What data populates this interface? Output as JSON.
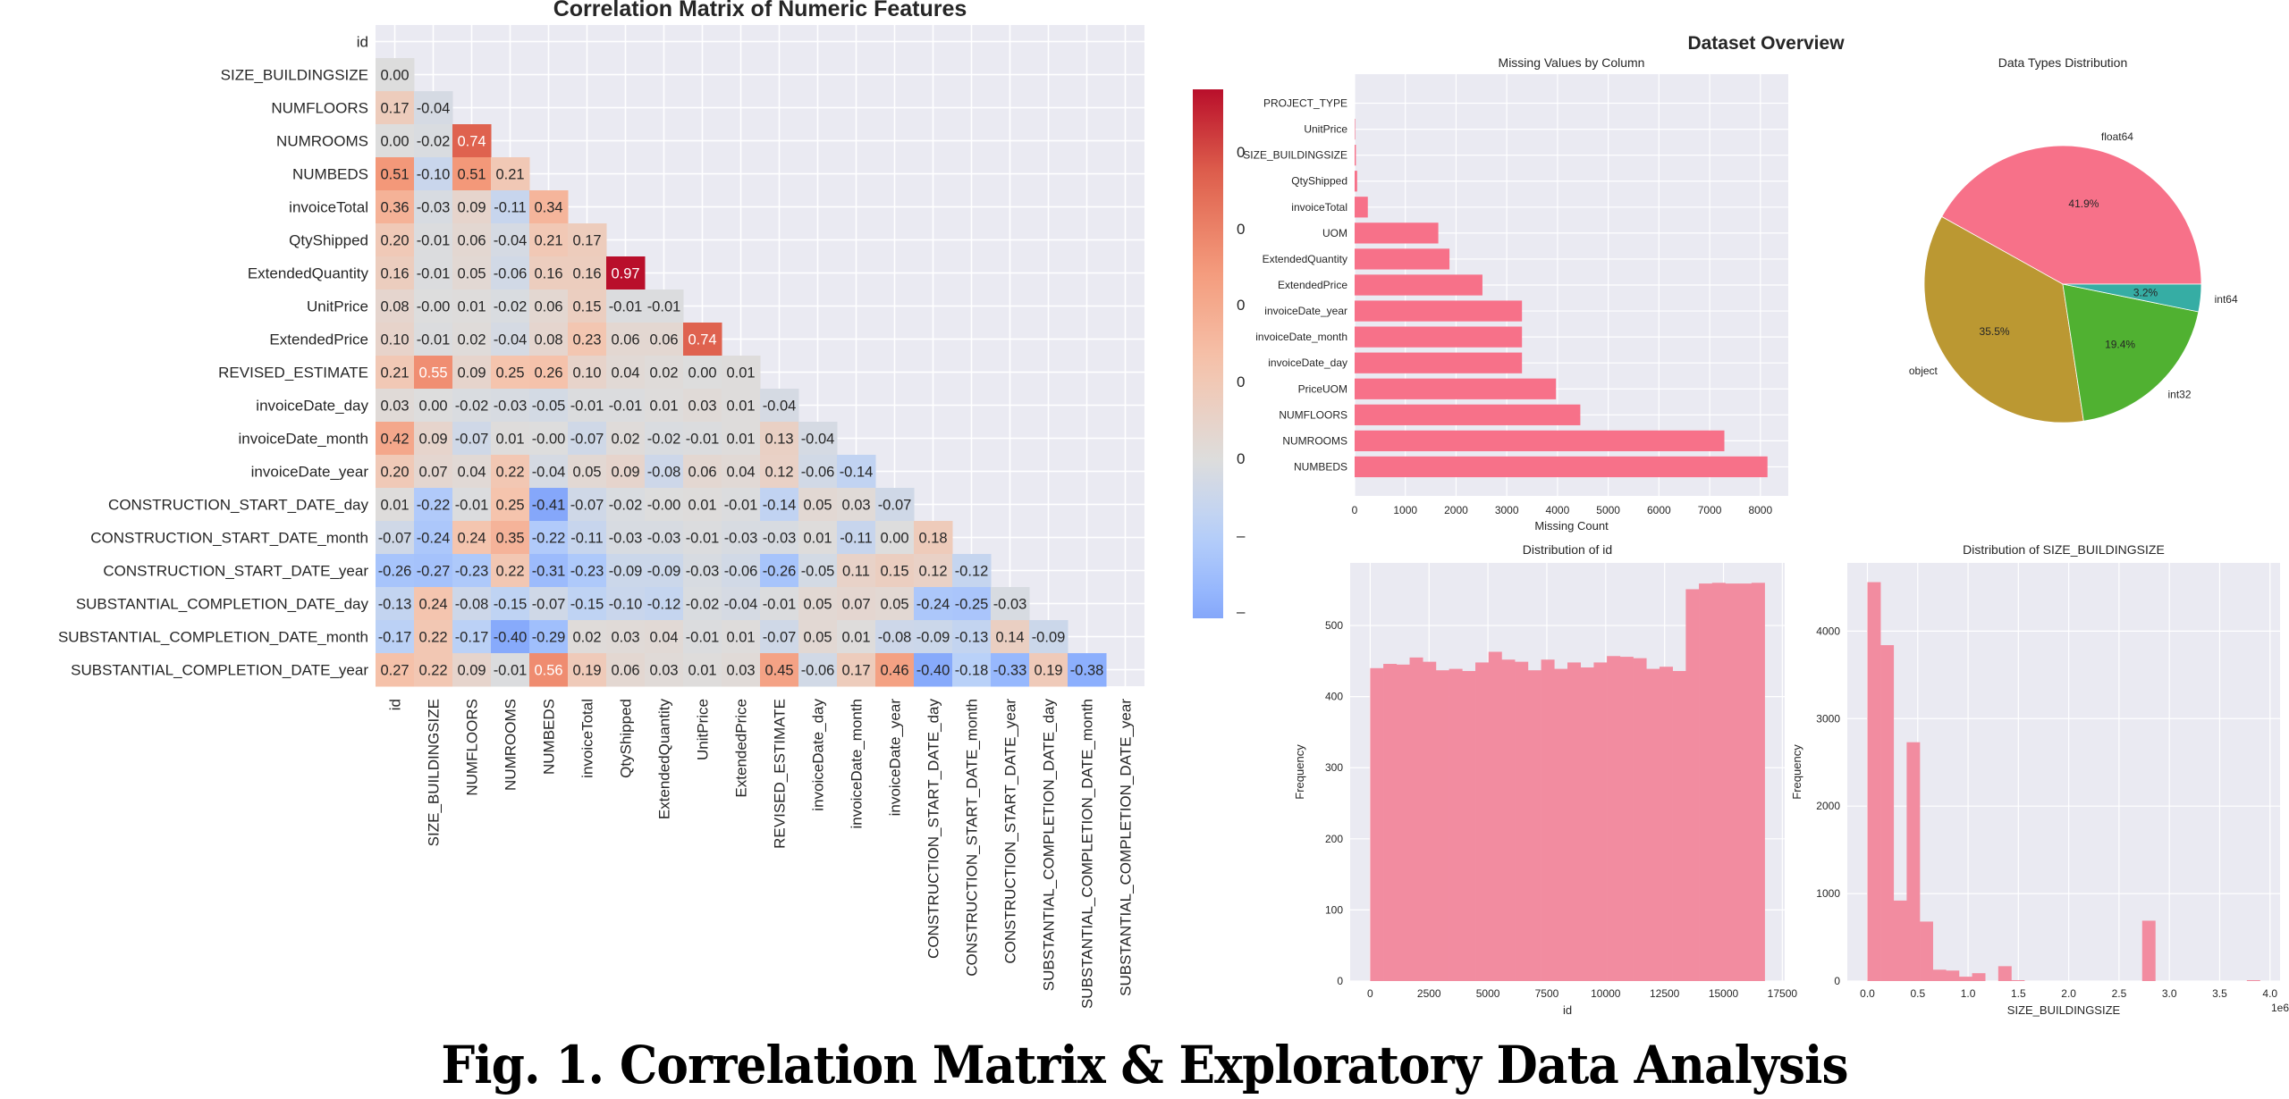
{
  "figure": {
    "caption": "Fig. 1.  Correlation Matrix & Exploratory Data Analysis",
    "overview_title": "Dataset Overview"
  },
  "chart_data": [
    {
      "type": "heatmap",
      "title": "Correlation Matrix of Numeric Features",
      "mask": "upper-triangle-including-diagonal",
      "colormap": "coolwarm",
      "vmin": -1,
      "vmax": 1,
      "colorbar_tick_labels": [
        "0",
        "0",
        "0",
        "0",
        "0",
        "–",
        "–"
      ],
      "labels": [
        "id",
        "SIZE_BUILDINGSIZE",
        "NUMFLOORS",
        "NUMROOMS",
        "NUMBEDS",
        "invoiceTotal",
        "QtyShipped",
        "ExtendedQuantity",
        "UnitPrice",
        "ExtendedPrice",
        "REVISED_ESTIMATE",
        "invoiceDate_day",
        "invoiceDate_month",
        "invoiceDate_year",
        "CONSTRUCTION_START_DATE_day",
        "CONSTRUCTION_START_DATE_month",
        "CONSTRUCTION_START_DATE_year",
        "SUBSTANTIAL_COMPLETION_DATE_day",
        "SUBSTANTIAL_COMPLETION_DATE_month",
        "SUBSTANTIAL_COMPLETION_DATE_year"
      ],
      "lower_triangle": [
        [],
        [
          0.0
        ],
        [
          0.17,
          -0.04
        ],
        [
          0.0,
          -0.02,
          0.74
        ],
        [
          0.51,
          -0.1,
          0.51,
          0.21
        ],
        [
          0.36,
          -0.03,
          0.09,
          -0.11,
          0.34
        ],
        [
          0.2,
          -0.01,
          0.06,
          -0.04,
          0.21,
          0.17
        ],
        [
          0.16,
          -0.01,
          0.05,
          -0.06,
          0.16,
          0.16,
          0.97
        ],
        [
          0.08,
          -0.0,
          0.01,
          -0.02,
          0.06,
          0.15,
          -0.01,
          -0.01
        ],
        [
          0.1,
          -0.01,
          0.02,
          -0.04,
          0.08,
          0.23,
          0.06,
          0.06,
          0.74
        ],
        [
          0.21,
          0.55,
          0.09,
          0.25,
          0.26,
          0.1,
          0.04,
          0.02,
          0.0,
          0.01
        ],
        [
          0.03,
          0.0,
          -0.02,
          -0.03,
          -0.05,
          -0.01,
          -0.01,
          0.01,
          0.03,
          0.01,
          -0.04
        ],
        [
          0.42,
          0.09,
          -0.07,
          0.01,
          -0.0,
          -0.07,
          0.02,
          -0.02,
          -0.01,
          0.01,
          0.13,
          -0.04
        ],
        [
          0.2,
          0.07,
          0.04,
          0.22,
          -0.04,
          0.05,
          0.09,
          -0.08,
          0.06,
          0.04,
          0.12,
          -0.06,
          -0.14
        ],
        [
          0.01,
          -0.22,
          -0.01,
          0.25,
          -0.41,
          -0.07,
          -0.02,
          -0.0,
          0.01,
          -0.01,
          -0.14,
          0.05,
          0.03,
          -0.07
        ],
        [
          -0.07,
          -0.24,
          0.24,
          0.35,
          -0.22,
          -0.11,
          -0.03,
          -0.03,
          -0.01,
          -0.03,
          -0.03,
          0.01,
          -0.11,
          0.0,
          0.18
        ],
        [
          -0.26,
          -0.27,
          -0.23,
          0.22,
          -0.31,
          -0.23,
          -0.09,
          -0.09,
          -0.03,
          -0.06,
          -0.26,
          -0.05,
          0.11,
          0.15,
          0.12,
          -0.12
        ],
        [
          -0.13,
          0.24,
          -0.08,
          -0.15,
          -0.07,
          -0.15,
          -0.1,
          -0.12,
          -0.02,
          -0.04,
          -0.01,
          0.05,
          0.07,
          0.05,
          -0.24,
          -0.25,
          -0.03
        ],
        [
          -0.17,
          0.22,
          -0.17,
          -0.4,
          -0.29,
          0.02,
          0.03,
          0.04,
          -0.01,
          0.01,
          -0.07,
          0.05,
          0.01,
          -0.08,
          -0.09,
          -0.13,
          0.14,
          -0.09
        ],
        [
          0.27,
          0.22,
          0.09,
          -0.01,
          0.56,
          0.19,
          0.06,
          0.03,
          0.01,
          0.03,
          0.45,
          -0.06,
          0.17,
          0.46,
          -0.4,
          -0.18,
          -0.33,
          0.19,
          -0.38
        ]
      ]
    },
    {
      "type": "bar",
      "orientation": "horizontal",
      "title": "Missing Values by Column",
      "xlabel": "Missing Count",
      "ylabel": "",
      "xlim": [
        0,
        8550
      ],
      "xticks": [
        0,
        1000,
        2000,
        3000,
        4000,
        5000,
        6000,
        7000,
        8000
      ],
      "categories": [
        "PROJECT_TYPE",
        "UnitPrice",
        "SIZE_BUILDINGSIZE",
        "QtyShipped",
        "invoiceTotal",
        "UOM",
        "ExtendedQuantity",
        "ExtendedPrice",
        "invoiceDate_year",
        "invoiceDate_month",
        "invoiceDate_day",
        "PriceUOM",
        "NUMFLOORS",
        "NUMROOMS",
        "NUMBEDS"
      ],
      "values": [
        0,
        10,
        25,
        50,
        260,
        1650,
        1870,
        2520,
        3300,
        3300,
        3300,
        3970,
        4450,
        7290,
        8140
      ],
      "color": "#f77189",
      "grid": true
    },
    {
      "type": "pie",
      "title": "Data Types Distribution",
      "labels": [
        "float64",
        "object",
        "int32",
        "int64"
      ],
      "values": [
        41.9,
        35.5,
        19.4,
        3.2
      ],
      "autopct": [
        "41.9%",
        "35.5%",
        "19.4%",
        "3.2%"
      ],
      "colors": [
        "#f77189",
        "#bb9832",
        "#50b131",
        "#36ada4"
      ],
      "start_angle": 0
    },
    {
      "type": "bar",
      "subtype": "histogram",
      "title": "Distribution of id",
      "xlabel": "id",
      "ylabel": "Frequency",
      "bin_range": [
        0,
        16750
      ],
      "xlim": [
        -850,
        17600
      ],
      "ylim": [
        0,
        588
      ],
      "xticks": [
        0,
        2500,
        5000,
        7500,
        10000,
        12500,
        15000,
        17500
      ],
      "yticks": [
        0,
        100,
        200,
        300,
        400,
        500
      ],
      "values": [
        440,
        446,
        445,
        455,
        449,
        437,
        439,
        436,
        448,
        463,
        452,
        449,
        437,
        452,
        439,
        448,
        441,
        448,
        457,
        456,
        454,
        439,
        442,
        436,
        551,
        559,
        560,
        559,
        559,
        560
      ],
      "color": "#f28ca0",
      "grid": true
    },
    {
      "type": "bar",
      "subtype": "histogram",
      "title": "Distribution of SIZE_BUILDINGSIZE",
      "xlabel": "SIZE_BUILDINGSIZE",
      "ylabel": "Frequency",
      "axis_offset_label": "1e6",
      "bin_range": [
        0,
        3.9
      ],
      "xlim": [
        -0.2,
        4.1
      ],
      "ylim": [
        0,
        4780
      ],
      "xticks": [
        0.0,
        0.5,
        1.0,
        1.5,
        2.0,
        2.5,
        3.0,
        3.5,
        4.0
      ],
      "xtick_labels": [
        "0.0",
        "0.5",
        "1.0",
        "1.5",
        "2.0",
        "2.5",
        "3.0",
        "3.5",
        "4.0"
      ],
      "yticks": [
        0,
        1000,
        2000,
        3000,
        4000
      ],
      "values": [
        4560,
        3840,
        920,
        2730,
        680,
        130,
        120,
        50,
        90,
        0,
        170,
        10,
        0,
        0,
        0,
        0,
        0,
        0,
        0,
        0,
        0,
        690,
        0,
        0,
        0,
        0,
        0,
        0,
        0,
        10
      ],
      "color": "#f28ca0",
      "grid": true
    }
  ]
}
